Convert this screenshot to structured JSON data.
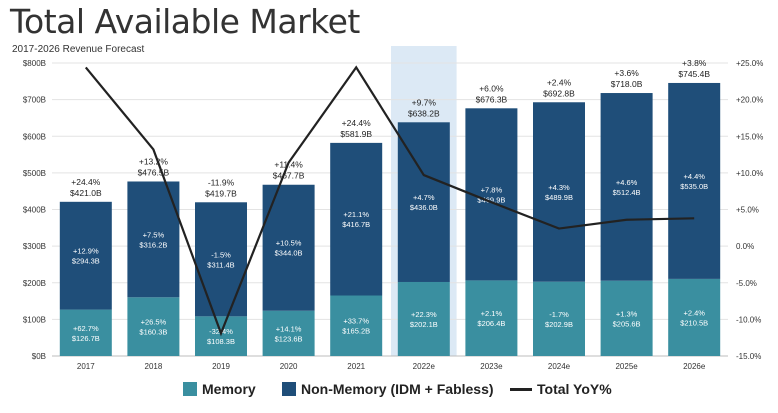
{
  "header": {
    "title": "Total Available Market",
    "subtitle": "2017-2026 Revenue Forecast"
  },
  "legend": {
    "memory": "Memory",
    "non_memory": "Non-Memory (IDM + Fabless)",
    "yoy": "Total YoY%"
  },
  "colors": {
    "memory": "#3a8fa0",
    "non_memory": "#1f4e79",
    "yoy_line": "#222222",
    "highlight": "#dce9f5"
  },
  "chart_data": {
    "type": "bar",
    "stacked": true,
    "categories": [
      "2017",
      "2018",
      "2019",
      "2020",
      "2021",
      "2022e",
      "2023e",
      "2024e",
      "2025e",
      "2026e"
    ],
    "highlight_category": "2022e",
    "series": [
      {
        "name": "Memory",
        "values": [
          126.7,
          160.3,
          108.3,
          123.6,
          165.2,
          202.1,
          206.4,
          202.9,
          205.6,
          210.5
        ],
        "labels": [
          "$126.7B",
          "$160.3B",
          "$108.3B",
          "$123.6B",
          "$165.2B",
          "$202.1B",
          "$206.4B",
          "$202.9B",
          "$205.6B",
          "$210.5B"
        ],
        "growth": [
          "+62.7%",
          "+26.5%",
          "-32.4%",
          "+14.1%",
          "+33.7%",
          "+22.3%",
          "+2.1%",
          "-1.7%",
          "+1.3%",
          "+2.4%"
        ]
      },
      {
        "name": "Non-Memory (IDM + Fabless)",
        "values": [
          294.3,
          316.2,
          311.4,
          344.0,
          416.7,
          436.0,
          469.9,
          489.9,
          512.4,
          535.0
        ],
        "labels": [
          "$294.3B",
          "$316.2B",
          "$311.4B",
          "$344.0B",
          "$416.7B",
          "$436.0B",
          "$469.9B",
          "$489.9B",
          "$512.4B",
          "$535.0B"
        ],
        "growth": [
          "+12.9%",
          "+7.5%",
          "-1.5%",
          "+10.5%",
          "+21.1%",
          "+4.7%",
          "+7.8%",
          "+4.3%",
          "+4.6%",
          "+4.4%"
        ]
      }
    ],
    "totals": {
      "values": [
        421.0,
        476.5,
        419.7,
        467.7,
        581.9,
        638.2,
        676.3,
        692.8,
        718.0,
        745.4
      ],
      "labels": [
        "$421.0B",
        "$476.5B",
        "$419.7B",
        "$467.7B",
        "$581.9B",
        "$638.2B",
        "$676.3B",
        "$692.8B",
        "$718.0B",
        "$745.4B"
      ],
      "growth": [
        "+24.4%",
        "+13.2%",
        "-11.9%",
        "+11.4%",
        "+24.4%",
        "+9.7%",
        "+6.0%",
        "+2.4%",
        "+3.6%",
        "+3.8%"
      ]
    },
    "yoy_line": {
      "name": "Total YoY%",
      "values": [
        24.4,
        13.2,
        -11.9,
        11.4,
        24.4,
        9.7,
        6.0,
        2.4,
        3.6,
        3.8
      ]
    },
    "left_axis": {
      "min": 0,
      "max": 800,
      "step": 100,
      "tick_labels": [
        "$0B",
        "$100B",
        "$200B",
        "$300B",
        "$400B",
        "$500B",
        "$600B",
        "$700B",
        "$800B"
      ]
    },
    "right_axis": {
      "min": -15,
      "max": 25,
      "step": 5,
      "tick_labels": [
        "-15.0%",
        "-10.0%",
        "-5.0%",
        "0.0%",
        "+5.0%",
        "+10.0%",
        "+15.0%",
        "+20.0%",
        "+25.0%"
      ]
    },
    "grid": true,
    "legend_position": "bottom"
  }
}
